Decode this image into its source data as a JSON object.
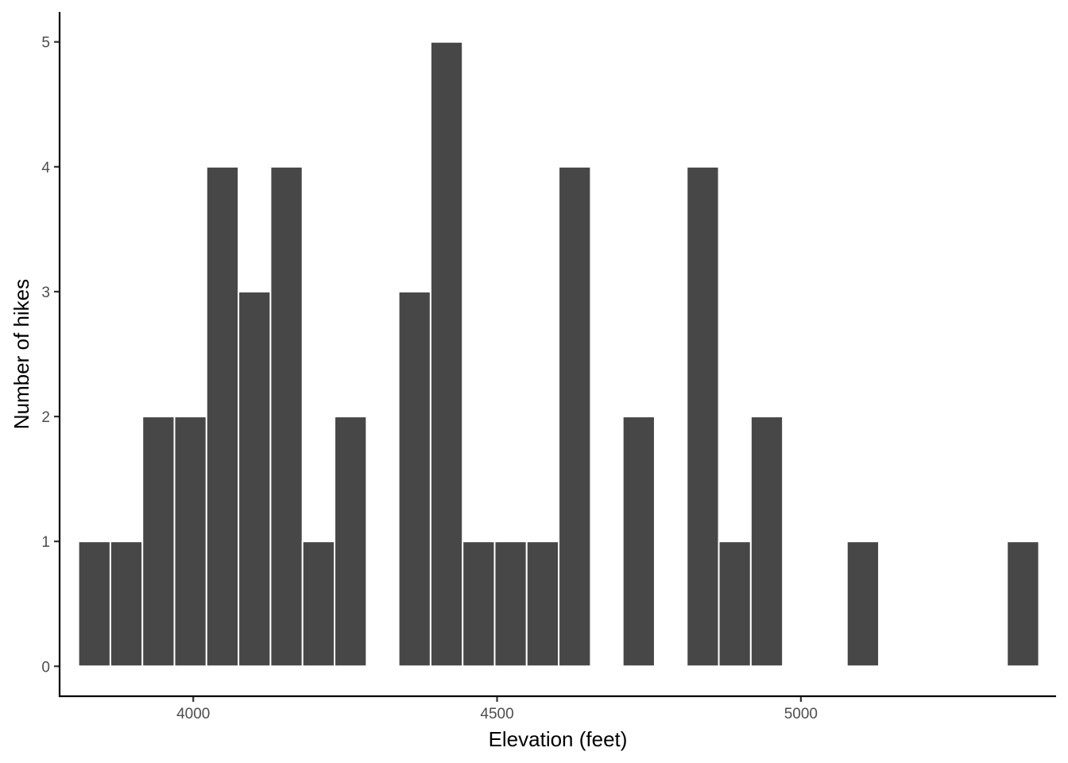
{
  "chart_data": {
    "type": "bar",
    "subtype": "histogram",
    "xlabel": "Elevation (feet)",
    "ylabel": "Number of hikes",
    "xlim": [
      3780,
      5420
    ],
    "ylim": [
      -0.24,
      5.24
    ],
    "x_ticks": [
      4000,
      4500,
      5000
    ],
    "y_ticks": [
      0,
      1,
      2,
      3,
      4,
      5
    ],
    "bin_width": 52.7,
    "grid": false,
    "legend": "none",
    "bar_color": "#474747",
    "bar_outline": "#ffffff",
    "bins": [
      {
        "x_start": 3810.9,
        "x_end": 3863.6,
        "count": 1
      },
      {
        "x_start": 3863.6,
        "x_end": 3916.3,
        "count": 1
      },
      {
        "x_start": 3916.3,
        "x_end": 3969.0,
        "count": 2
      },
      {
        "x_start": 3969.0,
        "x_end": 4021.7,
        "count": 2
      },
      {
        "x_start": 4021.7,
        "x_end": 4074.4,
        "count": 4
      },
      {
        "x_start": 4074.4,
        "x_end": 4127.1,
        "count": 3
      },
      {
        "x_start": 4127.1,
        "x_end": 4179.8,
        "count": 4
      },
      {
        "x_start": 4179.8,
        "x_end": 4232.5,
        "count": 1
      },
      {
        "x_start": 4232.5,
        "x_end": 4285.2,
        "count": 2
      },
      {
        "x_start": 4285.2,
        "x_end": 4337.9,
        "count": 0
      },
      {
        "x_start": 4337.9,
        "x_end": 4390.6,
        "count": 3
      },
      {
        "x_start": 4390.6,
        "x_end": 4443.3,
        "count": 5
      },
      {
        "x_start": 4443.3,
        "x_end": 4496.0,
        "count": 1
      },
      {
        "x_start": 4496.0,
        "x_end": 4548.7,
        "count": 1
      },
      {
        "x_start": 4548.7,
        "x_end": 4601.4,
        "count": 1
      },
      {
        "x_start": 4601.4,
        "x_end": 4654.1,
        "count": 4
      },
      {
        "x_start": 4654.1,
        "x_end": 4706.8,
        "count": 0
      },
      {
        "x_start": 4706.8,
        "x_end": 4759.5,
        "count": 2
      },
      {
        "x_start": 4759.5,
        "x_end": 4812.2,
        "count": 0
      },
      {
        "x_start": 4812.2,
        "x_end": 4864.9,
        "count": 4
      },
      {
        "x_start": 4864.9,
        "x_end": 4917.6,
        "count": 1
      },
      {
        "x_start": 4917.6,
        "x_end": 4970.3,
        "count": 2
      },
      {
        "x_start": 4970.3,
        "x_end": 5023.0,
        "count": 0
      },
      {
        "x_start": 5023.0,
        "x_end": 5075.7,
        "count": 0
      },
      {
        "x_start": 5075.7,
        "x_end": 5128.4,
        "count": 1
      },
      {
        "x_start": 5128.4,
        "x_end": 5181.1,
        "count": 0
      },
      {
        "x_start": 5181.1,
        "x_end": 5233.8,
        "count": 0
      },
      {
        "x_start": 5233.8,
        "x_end": 5286.5,
        "count": 0
      },
      {
        "x_start": 5286.5,
        "x_end": 5339.2,
        "count": 0
      },
      {
        "x_start": 5339.2,
        "x_end": 5391.9,
        "count": 1
      }
    ]
  }
}
